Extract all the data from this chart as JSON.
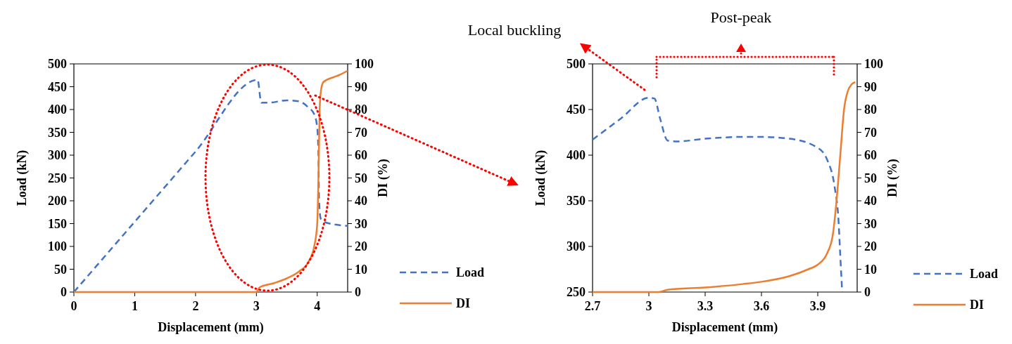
{
  "chart_data": [
    {
      "type": "line",
      "xlabel": "Displacement (mm)",
      "ylabel": "Load (kN)",
      "y2label": "DI (%)",
      "xlim": [
        0,
        4.5
      ],
      "xticks": [
        0,
        1,
        2,
        3,
        4
      ],
      "ylim": [
        0,
        500
      ],
      "yticks": [
        0,
        50,
        100,
        150,
        200,
        250,
        300,
        350,
        400,
        450,
        500
      ],
      "y2lim": [
        0,
        100
      ],
      "y2ticks": [
        0,
        10,
        20,
        30,
        40,
        50,
        60,
        70,
        80,
        90,
        100
      ],
      "grid": false,
      "legend": "bottom right",
      "series": [
        {
          "name": "Load",
          "color": "#4472c4",
          "line_style": "dashed",
          "x": [
            0,
            1,
            2,
            3.02,
            3.08,
            3.2,
            3.5,
            3.7,
            3.85,
            3.95,
            4.0,
            4.02,
            4.03,
            4.06,
            4.15,
            4.5
          ],
          "values": [
            0,
            154,
            308,
            465,
            415,
            415,
            420,
            418,
            405,
            390,
            360,
            300,
            200,
            160,
            152,
            145
          ]
        },
        {
          "name": "DI",
          "color": "#ed7d31",
          "line_style": "solid",
          "axis": "y2",
          "x": [
            0,
            3.0,
            3.05,
            3.3,
            3.5,
            3.7,
            3.85,
            3.95,
            4.0,
            4.02,
            4.04,
            4.06,
            4.1,
            4.25,
            4.35,
            4.5
          ],
          "values": [
            0,
            0,
            2,
            4,
            6,
            9,
            13,
            20,
            30,
            50,
            80,
            88,
            92,
            94,
            95,
            97
          ]
        }
      ]
    },
    {
      "type": "line",
      "xlabel": "Displacement (mm)",
      "ylabel": "Load (kN)",
      "y2label": "DI (%)",
      "xlim": [
        2.7,
        4.11
      ],
      "xticks": [
        2.7,
        3,
        3.3,
        3.6,
        3.9
      ],
      "ylim": [
        250,
        500
      ],
      "yticks": [
        250,
        300,
        350,
        400,
        450,
        500
      ],
      "y2lim": [
        0,
        100
      ],
      "y2ticks": [
        0,
        10,
        20,
        30,
        40,
        50,
        60,
        70,
        80,
        90,
        100
      ],
      "grid": false,
      "legend": "bottom right",
      "annotations": [
        "Local buckling",
        "Post-peak"
      ],
      "series": [
        {
          "name": "Load",
          "color": "#4472c4",
          "line_style": "dashed",
          "x": [
            2.7,
            2.85,
            3.0,
            3.03,
            3.06,
            3.1,
            3.15,
            3.3,
            3.5,
            3.6,
            3.75,
            3.9,
            3.95,
            3.99,
            4.01,
            4.02,
            4.03
          ],
          "values": [
            417,
            440,
            463,
            462,
            440,
            416,
            415,
            418,
            420,
            420,
            418,
            408,
            395,
            365,
            330,
            290,
            250
          ]
        },
        {
          "name": "DI",
          "color": "#ed7d31",
          "line_style": "solid",
          "axis": "y2",
          "x": [
            2.7,
            3.05,
            3.1,
            3.3,
            3.5,
            3.6,
            3.75,
            3.85,
            3.9,
            3.95,
            3.98,
            4.0,
            4.02,
            4.04,
            4.06,
            4.08,
            4.1
          ],
          "values": [
            0,
            0,
            1,
            2,
            3.5,
            4.5,
            7,
            10,
            12,
            17,
            25,
            40,
            60,
            80,
            88,
            91,
            92
          ]
        }
      ]
    }
  ]
}
